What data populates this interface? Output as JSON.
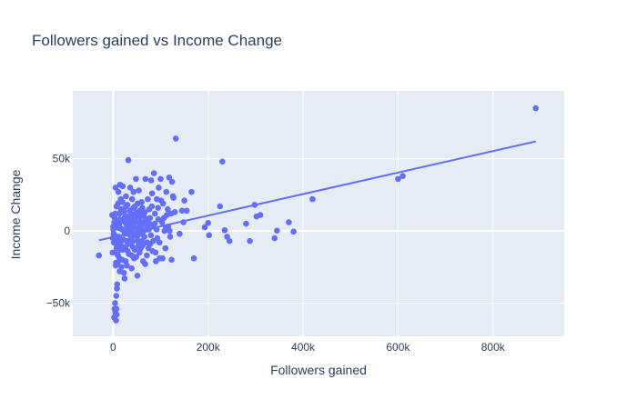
{
  "chart_data": {
    "type": "scatter",
    "title": "Followers gained vs Income Change",
    "xlabel": "Followers gained",
    "ylabel": "Income Change",
    "xlim": [
      -85000,
      950000
    ],
    "ylim": [
      -73000,
      97000
    ],
    "grid": true,
    "legend": "none",
    "colors": {
      "background": "#e5ecf6",
      "marker": "#636efa",
      "grid": "#ffffff",
      "text": "#2a3f5f"
    },
    "x_ticks": [
      {
        "value": 0,
        "label": "0"
      },
      {
        "value": 200000,
        "label": "200k"
      },
      {
        "value": 400000,
        "label": "400k"
      },
      {
        "value": 600000,
        "label": "600k"
      },
      {
        "value": 800000,
        "label": "800k"
      }
    ],
    "y_ticks": [
      {
        "value": -50000,
        "label": "−50k"
      },
      {
        "value": 0,
        "label": "0"
      },
      {
        "value": 50000,
        "label": "50k"
      }
    ],
    "trendline": {
      "x": [
        -30000,
        890000
      ],
      "y": [
        -6500,
        62000
      ]
    },
    "points": [
      [
        890000,
        85000
      ],
      [
        610000,
        38000
      ],
      [
        600000,
        36000
      ],
      [
        420000,
        22000
      ],
      [
        380000,
        -500
      ],
      [
        370000,
        6000
      ],
      [
        345000,
        200
      ],
      [
        340000,
        -5000
      ],
      [
        310000,
        11000
      ],
      [
        302000,
        10000
      ],
      [
        298000,
        18000
      ],
      [
        288000,
        -7000
      ],
      [
        280000,
        5000
      ],
      [
        245000,
        -7000
      ],
      [
        240000,
        -4000
      ],
      [
        235000,
        500
      ],
      [
        230000,
        48000
      ],
      [
        225000,
        17000
      ],
      [
        202000,
        -3000
      ],
      [
        200000,
        5500
      ],
      [
        193000,
        2500
      ],
      [
        170000,
        -19000
      ],
      [
        165000,
        27000
      ],
      [
        155000,
        14000
      ],
      [
        150000,
        21000
      ],
      [
        148000,
        6000
      ],
      [
        145000,
        14000
      ],
      [
        140000,
        -2000
      ],
      [
        132000,
        64000
      ],
      [
        130000,
        13000
      ],
      [
        127000,
        23000
      ],
      [
        124000,
        34000
      ],
      [
        122000,
        12000
      ],
      [
        120000,
        -4000
      ],
      [
        118000,
        37000
      ],
      [
        116000,
        3000
      ],
      [
        113000,
        11000
      ],
      [
        112000,
        27000
      ],
      [
        110000,
        -12000
      ],
      [
        108000,
        0
      ],
      [
        105000,
        19000
      ],
      [
        103000,
        6000
      ],
      [
        100000,
        36000
      ],
      [
        98000,
        -19000
      ],
      [
        96000,
        30000
      ],
      [
        95000,
        8000
      ],
      [
        93000,
        -5000
      ],
      [
        92000,
        22000
      ],
      [
        90000,
        -21000
      ],
      [
        88000,
        12000
      ],
      [
        86000,
        40000
      ],
      [
        85000,
        3000
      ],
      [
        83000,
        -14000
      ],
      [
        82000,
        26000
      ],
      [
        80000,
        35000
      ],
      [
        78000,
        -9000
      ],
      [
        76000,
        15000
      ],
      [
        75000,
        1000
      ],
      [
        73000,
        22000
      ],
      [
        71000,
        -17000
      ],
      [
        70000,
        8000
      ],
      [
        68000,
        36000
      ],
      [
        66000,
        -4000
      ],
      [
        65000,
        10000
      ],
      [
        63000,
        -21000
      ],
      [
        62000,
        4000
      ],
      [
        60000,
        20000
      ],
      [
        58000,
        -12000
      ],
      [
        56000,
        14000
      ],
      [
        55000,
        0
      ],
      [
        54000,
        28000
      ],
      [
        52000,
        -7000
      ],
      [
        51000,
        -31000
      ],
      [
        50000,
        9000
      ],
      [
        48000,
        36000
      ],
      [
        47000,
        -3000
      ],
      [
        46000,
        17000
      ],
      [
        44000,
        -19000
      ],
      [
        43000,
        27000
      ],
      [
        42000,
        5000
      ],
      [
        41000,
        -11000
      ],
      [
        40000,
        22000
      ],
      [
        39000,
        -26000
      ],
      [
        38000,
        12000
      ],
      [
        37000,
        1000
      ],
      [
        36000,
        30000
      ],
      [
        35000,
        -8000
      ],
      [
        34000,
        8000
      ],
      [
        33000,
        -16000
      ],
      [
        32000,
        49000
      ],
      [
        31000,
        -2000
      ],
      [
        30000,
        18000
      ],
      [
        29000,
        -24000
      ],
      [
        28000,
        4000
      ],
      [
        27000,
        24000
      ],
      [
        26000,
        -11000
      ],
      [
        25000,
        10000
      ],
      [
        24000,
        -33000
      ],
      [
        23000,
        0
      ],
      [
        22000,
        15000
      ],
      [
        21000,
        -6000
      ],
      [
        20000,
        31000
      ],
      [
        19000,
        -20000
      ],
      [
        18000,
        7000
      ],
      [
        17000,
        -13000
      ],
      [
        16000,
        22000
      ],
      [
        15000,
        2000
      ],
      [
        14000,
        -28000
      ],
      [
        13000,
        12000
      ],
      [
        12000,
        -4000
      ],
      [
        11000,
        27000
      ],
      [
        10000,
        -17000
      ],
      [
        9000,
        6000
      ],
      [
        8000,
        -40000
      ],
      [
        7000,
        17000
      ],
      [
        6000,
        -9000
      ],
      [
        5000,
        30000
      ],
      [
        4000,
        -55000
      ],
      [
        3000,
        9000
      ],
      [
        2000,
        -60000
      ],
      [
        1000,
        -2000
      ],
      [
        0,
        3000
      ],
      [
        -1000,
        -15000
      ],
      [
        -2000,
        11000
      ],
      [
        5500,
        -24000
      ],
      [
        6500,
        -45000
      ],
      [
        7500,
        -58000
      ],
      [
        8500,
        -37000
      ],
      [
        9500,
        -22000
      ],
      [
        10500,
        19000
      ],
      [
        11500,
        -6000
      ],
      [
        12500,
        4000
      ],
      [
        13500,
        -19000
      ],
      [
        14500,
        32000
      ],
      [
        15500,
        -9000
      ],
      [
        16500,
        15000
      ],
      [
        17500,
        -25000
      ],
      [
        18500,
        1000
      ],
      [
        19500,
        20000
      ],
      [
        20500,
        -13000
      ],
      [
        21500,
        8000
      ],
      [
        22500,
        -29000
      ],
      [
        23500,
        13000
      ],
      [
        24500,
        -2000
      ],
      [
        25500,
        6000
      ],
      [
        26500,
        -21000
      ],
      [
        27500,
        17000
      ],
      [
        28500,
        -7000
      ],
      [
        29500,
        2000
      ],
      [
        30500,
        -14000
      ],
      [
        31500,
        10000
      ],
      [
        32500,
        -1000
      ],
      [
        33500,
        5000
      ],
      [
        34500,
        -9000
      ],
      [
        35500,
        14000
      ],
      [
        36500,
        0
      ],
      [
        37500,
        -5000
      ],
      [
        38500,
        7000
      ],
      [
        39500,
        -17000
      ],
      [
        40500,
        3000
      ],
      [
        41500,
        -7000
      ],
      [
        42500,
        16000
      ],
      [
        43500,
        -2000
      ],
      [
        44500,
        10000
      ],
      [
        45500,
        -13000
      ],
      [
        46500,
        2000
      ],
      [
        47500,
        6000
      ],
      [
        48500,
        -18000
      ],
      [
        49500,
        13000
      ],
      [
        50500,
        -4000
      ],
      [
        51500,
        19000
      ],
      [
        52500,
        1000
      ],
      [
        53500,
        -10000
      ],
      [
        54500,
        8000
      ],
      [
        55500,
        -15000
      ],
      [
        56500,
        4000
      ],
      [
        57500,
        11000
      ],
      [
        58500,
        -2000
      ],
      [
        59500,
        2000
      ],
      [
        60500,
        -7000
      ],
      [
        61500,
        16000
      ],
      [
        62500,
        -10000
      ],
      [
        63500,
        6000
      ],
      [
        64500,
        0
      ],
      [
        66500,
        13000
      ],
      [
        67500,
        -23000
      ],
      [
        69500,
        4000
      ],
      [
        71500,
        -8000
      ],
      [
        72500,
        1000
      ],
      [
        74500,
        -12000
      ],
      [
        76500,
        5000
      ],
      [
        77500,
        9000
      ],
      [
        79500,
        -3000
      ],
      [
        81500,
        17000
      ],
      [
        84500,
        -7000
      ],
      [
        87500,
        5000
      ],
      [
        89500,
        -15000
      ],
      [
        91500,
        1000
      ],
      [
        94500,
        16000
      ],
      [
        97500,
        -8000
      ],
      [
        101000,
        21000
      ],
      [
        104000,
        -19000
      ],
      [
        107000,
        9000
      ],
      [
        111000,
        2000
      ],
      [
        115000,
        15000
      ],
      [
        119000,
        0
      ],
      [
        123000,
        -20000
      ],
      [
        126000,
        24000
      ],
      [
        2500,
        6000
      ],
      [
        3500,
        -3000
      ],
      [
        4500,
        12000
      ],
      [
        1500,
        -8000
      ],
      [
        500,
        1000
      ],
      [
        -500,
        -5000
      ],
      [
        6000,
        -22000
      ],
      [
        7000,
        -12000
      ],
      [
        8000,
        6000
      ],
      [
        9000,
        -16000
      ],
      [
        10000,
        4000
      ],
      [
        11000,
        -9000
      ],
      [
        12000,
        2000
      ],
      [
        13000,
        -6000
      ],
      [
        14000,
        8000
      ],
      [
        15000,
        -12000
      ],
      [
        4000,
        -50000
      ],
      [
        5000,
        -57000
      ],
      [
        6000,
        -62000
      ],
      [
        3000,
        -54000
      ],
      [
        7000,
        -54000
      ],
      [
        -30000,
        -17000
      ]
    ]
  }
}
